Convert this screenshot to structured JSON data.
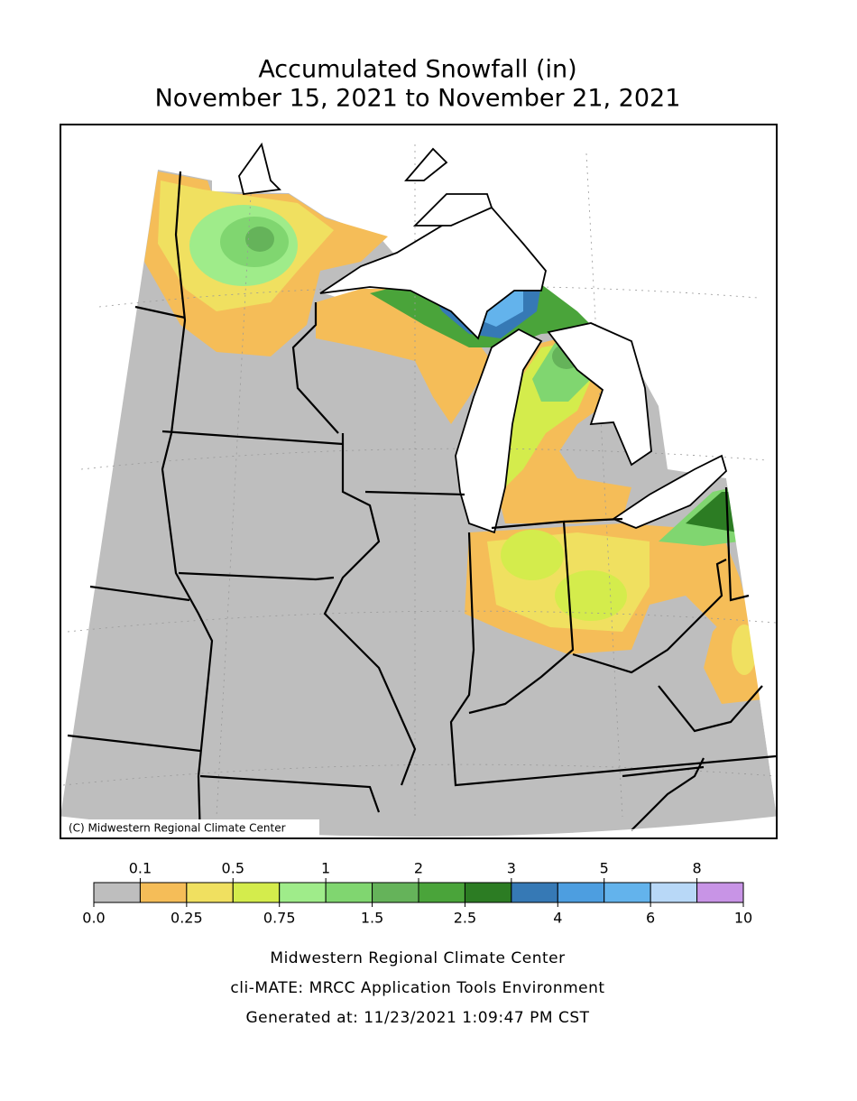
{
  "title": [
    "Accumulated Snowfall (in)",
    "November 15, 2021 to November 21, 2021"
  ],
  "map": {
    "copyright": "(C) Midwestern Regional Climate Center"
  },
  "legend": {
    "bins": [
      {
        "value": 0,
        "label": "0.0"
      },
      0.1,
      0.25,
      0.5,
      0.75,
      1,
      1.5,
      2,
      2.5,
      3,
      4,
      5,
      6,
      8,
      10
    ],
    "colors": [
      "#bebebe",
      "#f5bd58",
      "#f0e060",
      "#d4ec4c",
      "#9fec8a",
      "#80d670",
      "#65b35a",
      "#4aa43a",
      "#2c7c23",
      "#3679b5",
      "#4d9ee0",
      "#63b3ec",
      "#b8d8f7",
      "#c894e6"
    ]
  },
  "footer": [
    "Midwestern Regional Climate Center",
    "cli-MATE: MRCC Application Tools Environment",
    "Generated at: 11/23/2021 1:09:47 PM CST"
  ]
}
